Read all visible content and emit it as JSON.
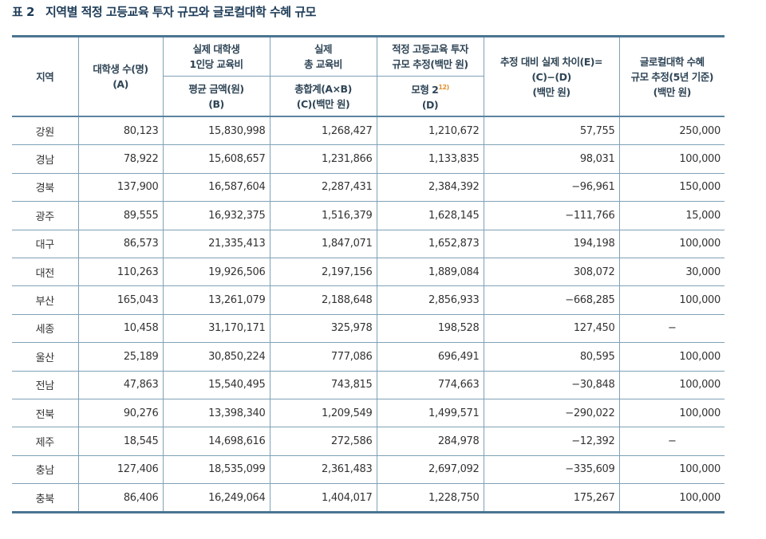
{
  "title": {
    "number": "표 2",
    "text": "지역별 적정 고등교육 투자 규모와 글로컬대학 수혜 규모"
  },
  "headers": {
    "region": "지역",
    "students": [
      "대학생 수(명)",
      "(A)"
    ],
    "per_student_top": [
      "실제 대학생",
      "1인당 교육비"
    ],
    "per_student_sub": [
      "평균 금액(원)",
      "(B)"
    ],
    "total_top": [
      "실제",
      "총 교육비"
    ],
    "total_sub": [
      "총합계(A×B)",
      "(C)(백만 원)"
    ],
    "proper_top": [
      "적정 고등교육 투자",
      "규모 추정(백만 원)"
    ],
    "proper_sub": [
      "모형 2",
      "(D)"
    ],
    "proper_footnote": "12)",
    "diff": [
      "추정 대비 실제 차이(E)=",
      "(C)−(D)",
      "(백만 원)"
    ],
    "glocal": [
      "글로컬대학 수혜",
      "규모 추정(5년 기준)",
      "(백만 원)"
    ]
  },
  "rows": [
    [
      "강원",
      "80,123",
      "15,830,998",
      "1,268,427",
      "1,210,672",
      "57,755",
      "250,000"
    ],
    [
      "경남",
      "78,922",
      "15,608,657",
      "1,231,866",
      "1,133,835",
      "98,031",
      "100,000"
    ],
    [
      "경북",
      "137,900",
      "16,587,604",
      "2,287,431",
      "2,384,392",
      "−96,961",
      "150,000"
    ],
    [
      "광주",
      "89,555",
      "16,932,375",
      "1,516,379",
      "1,628,145",
      "−111,766",
      "15,000"
    ],
    [
      "대구",
      "86,573",
      "21,335,413",
      "1,847,071",
      "1,652,873",
      "194,198",
      "100,000"
    ],
    [
      "대전",
      "110,263",
      "19,926,506",
      "2,197,156",
      "1,889,084",
      "308,072",
      "30,000"
    ],
    [
      "부산",
      "165,043",
      "13,261,079",
      "2,188,648",
      "2,856,933",
      "−668,285",
      "100,000"
    ],
    [
      "세종",
      "10,458",
      "31,170,171",
      "325,978",
      "198,528",
      "127,450",
      "−"
    ],
    [
      "울산",
      "25,189",
      "30,850,224",
      "777,086",
      "696,491",
      "80,595",
      "100,000"
    ],
    [
      "전남",
      "47,863",
      "15,540,495",
      "743,815",
      "774,663",
      "−30,848",
      "100,000"
    ],
    [
      "전북",
      "90,276",
      "13,398,340",
      "1,209,549",
      "1,499,571",
      "−290,022",
      "100,000"
    ],
    [
      "제주",
      "18,545",
      "14,698,616",
      "272,586",
      "284,978",
      "−12,392",
      "−"
    ],
    [
      "충남",
      "127,406",
      "18,535,099",
      "2,361,483",
      "2,697,092",
      "−335,609",
      "100,000"
    ],
    [
      "충북",
      "86,406",
      "16,249,064",
      "1,404,017",
      "1,228,750",
      "175,267",
      "100,000"
    ]
  ]
}
